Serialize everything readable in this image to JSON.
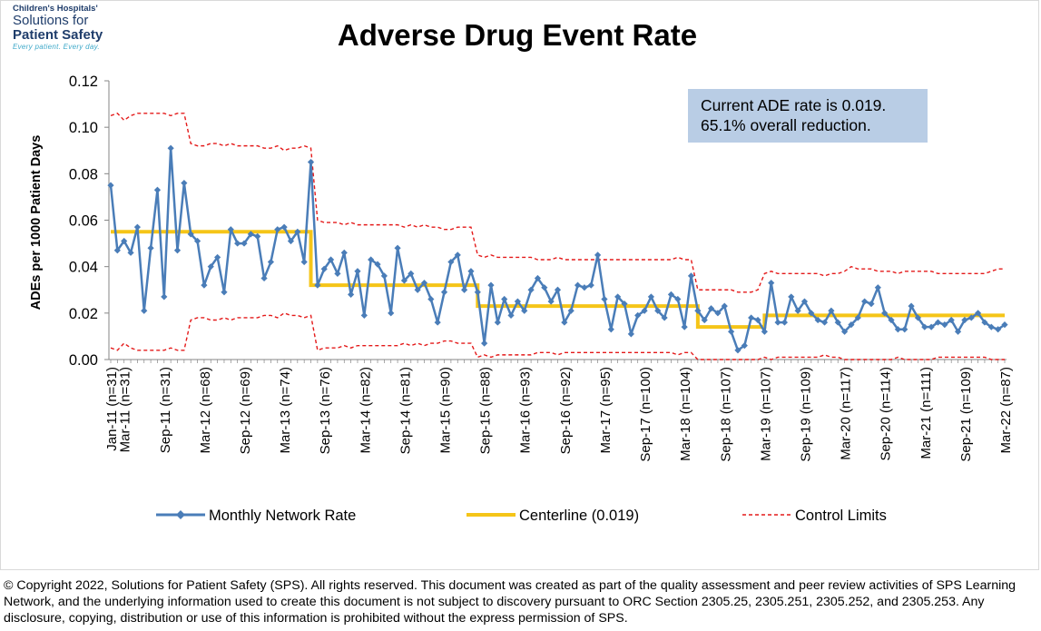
{
  "logo": {
    "line1": "Children's Hospitals'",
    "line2": "Solutions for",
    "line3": "Patient Safety",
    "line4": "Every patient. Every day."
  },
  "infobox": {
    "line1": "Current ADE rate is 0.019.",
    "line2": "65.1% overall reduction."
  },
  "footer": {
    "text": "© Copyright 2022, Solutions for Patient Safety (SPS).  All rights reserved.  This document was created as part of the quality assessment and peer review activities of SPS Learning Network, and the underlying information used to create this document is not subject to discovery pursuant to ORC Section 2305.25, 2305.251, 2305.252, and 2305.253. Any disclosure, copying, distribution or use of this information is prohibited without the express permission of SPS."
  },
  "colors": {
    "series": "#4a7db8",
    "centerline": "#f5c518",
    "limits": "#e41a1a",
    "axis": "#868686",
    "infobox": "#b9cde5"
  },
  "chart_data": {
    "type": "line",
    "title": "Adverse Drug Event Rate",
    "ylabel": "ADEs per 1000 Patient Days",
    "xlabel": "",
    "ylim": [
      0,
      0.12
    ],
    "yticks": [
      "0.00",
      "0.02",
      "0.04",
      "0.06",
      "0.08",
      "0.10",
      "0.12"
    ],
    "grid": false,
    "legend_position": "bottom",
    "x_tick_labels": [
      {
        "i": 0,
        "label": "Jan-11 (n=31)"
      },
      {
        "i": 2,
        "label": "Mar-11 (n=31)"
      },
      {
        "i": 8,
        "label": "Sep-11 (n=31)"
      },
      {
        "i": 14,
        "label": "Mar-12 (n=68)"
      },
      {
        "i": 20,
        "label": "Sep-12 (n=69)"
      },
      {
        "i": 26,
        "label": "Mar-13 (n=74)"
      },
      {
        "i": 32,
        "label": "Sep-13 (n=76)"
      },
      {
        "i": 38,
        "label": "Mar-14 (n=82)"
      },
      {
        "i": 44,
        "label": "Sep-14 (n=81)"
      },
      {
        "i": 50,
        "label": "Mar-15 (n=90)"
      },
      {
        "i": 56,
        "label": "Sep-15 (n=88)"
      },
      {
        "i": 62,
        "label": "Mar-16 (n=93)"
      },
      {
        "i": 68,
        "label": "Sep-16 (n=92)"
      },
      {
        "i": 74,
        "label": "Mar-17 (n=95)"
      },
      {
        "i": 80,
        "label": "Sep-17 (n=100)"
      },
      {
        "i": 86,
        "label": "Mar-18 (n=104)"
      },
      {
        "i": 92,
        "label": "Sep-18 (n=107)"
      },
      {
        "i": 98,
        "label": "Mar-19 (n=107)"
      },
      {
        "i": 104,
        "label": "Sep-19 (n=109)"
      },
      {
        "i": 110,
        "label": "Mar-20 (n=117)"
      },
      {
        "i": 116,
        "label": "Sep-20 (n=114)"
      },
      {
        "i": 122,
        "label": "Mar-21 (n=111)"
      },
      {
        "i": 128,
        "label": "Sep-21 (n=109)"
      },
      {
        "i": 134,
        "label": "Mar-22 (n=87)"
      }
    ],
    "series": [
      {
        "name": "Monthly Network Rate",
        "style": "line-diamond",
        "values": [
          0.075,
          0.047,
          0.051,
          0.046,
          0.057,
          0.021,
          0.048,
          0.073,
          0.027,
          0.091,
          0.047,
          0.076,
          0.054,
          0.051,
          0.032,
          0.04,
          0.044,
          0.029,
          0.056,
          0.05,
          0.05,
          0.054,
          0.053,
          0.035,
          0.042,
          0.056,
          0.057,
          0.051,
          0.055,
          0.042,
          0.085,
          0.032,
          0.039,
          0.043,
          0.037,
          0.046,
          0.028,
          0.038,
          0.019,
          0.043,
          0.041,
          0.036,
          0.02,
          0.048,
          0.034,
          0.037,
          0.03,
          0.033,
          0.026,
          0.016,
          0.029,
          0.042,
          0.045,
          0.03,
          0.038,
          0.029,
          0.007,
          0.032,
          0.016,
          0.026,
          0.019,
          0.025,
          0.021,
          0.03,
          0.035,
          0.031,
          0.025,
          0.03,
          0.016,
          0.021,
          0.032,
          0.031,
          0.032,
          0.045,
          0.026,
          0.013,
          0.027,
          0.024,
          0.011,
          0.019,
          0.021,
          0.027,
          0.021,
          0.018,
          0.028,
          0.026,
          0.014,
          0.036,
          0.021,
          0.017,
          0.022,
          0.02,
          0.023,
          0.012,
          0.004,
          0.006,
          0.018,
          0.017,
          0.012,
          0.033,
          0.016,
          0.016,
          0.027,
          0.021,
          0.025,
          0.02,
          0.017,
          0.016,
          0.021,
          0.016,
          0.012,
          0.015,
          0.018,
          0.025,
          0.024,
          0.031,
          0.02,
          0.017,
          0.013,
          0.013,
          0.023,
          0.018,
          0.014,
          0.014,
          0.016,
          0.015,
          0.017,
          0.012,
          0.017,
          0.018,
          0.02,
          0.016,
          0.014,
          0.013,
          0.015
        ]
      },
      {
        "name": "Centerline (0.019)",
        "style": "step",
        "segments": [
          {
            "from": 0,
            "to": 30,
            "value": 0.055
          },
          {
            "from": 30,
            "to": 55,
            "value": 0.032
          },
          {
            "from": 55,
            "to": 88,
            "value": 0.023
          },
          {
            "from": 88,
            "to": 98,
            "value": 0.014
          },
          {
            "from": 98,
            "to": 134,
            "value": 0.019
          }
        ]
      },
      {
        "name": "Control Limits",
        "style": "dashed",
        "upper": [
          0.105,
          0.106,
          0.103,
          0.105,
          0.106,
          0.106,
          0.106,
          0.106,
          0.106,
          0.105,
          0.106,
          0.106,
          0.093,
          0.092,
          0.092,
          0.093,
          0.093,
          0.092,
          0.093,
          0.092,
          0.092,
          0.092,
          0.092,
          0.091,
          0.091,
          0.092,
          0.09,
          0.091,
          0.091,
          0.092,
          0.091,
          0.06,
          0.059,
          0.059,
          0.059,
          0.058,
          0.059,
          0.058,
          0.058,
          0.058,
          0.058,
          0.058,
          0.058,
          0.058,
          0.057,
          0.058,
          0.057,
          0.058,
          0.057,
          0.057,
          0.056,
          0.056,
          0.057,
          0.057,
          0.057,
          0.045,
          0.044,
          0.045,
          0.044,
          0.044,
          0.044,
          0.044,
          0.044,
          0.044,
          0.043,
          0.043,
          0.043,
          0.044,
          0.043,
          0.043,
          0.043,
          0.043,
          0.043,
          0.043,
          0.043,
          0.043,
          0.043,
          0.043,
          0.043,
          0.043,
          0.043,
          0.043,
          0.043,
          0.043,
          0.043,
          0.044,
          0.043,
          0.043,
          0.03,
          0.03,
          0.03,
          0.03,
          0.03,
          0.03,
          0.029,
          0.029,
          0.029,
          0.03,
          0.037,
          0.038,
          0.037,
          0.037,
          0.037,
          0.037,
          0.037,
          0.037,
          0.037,
          0.036,
          0.037,
          0.037,
          0.038,
          0.04,
          0.039,
          0.039,
          0.039,
          0.038,
          0.038,
          0.038,
          0.037,
          0.038,
          0.038,
          0.038,
          0.038,
          0.038,
          0.037,
          0.037,
          0.037,
          0.037,
          0.037,
          0.037,
          0.037,
          0.037,
          0.038,
          0.039,
          0.039
        ],
        "lower": [
          0.005,
          0.004,
          0.007,
          0.005,
          0.004,
          0.004,
          0.004,
          0.004,
          0.004,
          0.005,
          0.004,
          0.004,
          0.017,
          0.018,
          0.018,
          0.017,
          0.017,
          0.018,
          0.017,
          0.018,
          0.018,
          0.018,
          0.018,
          0.019,
          0.019,
          0.018,
          0.02,
          0.019,
          0.019,
          0.018,
          0.019,
          0.004,
          0.005,
          0.005,
          0.005,
          0.006,
          0.005,
          0.006,
          0.006,
          0.006,
          0.006,
          0.006,
          0.006,
          0.006,
          0.007,
          0.006,
          0.007,
          0.006,
          0.007,
          0.007,
          0.008,
          0.008,
          0.007,
          0.007,
          0.007,
          0.001,
          0.002,
          0.001,
          0.002,
          0.002,
          0.002,
          0.002,
          0.002,
          0.002,
          0.003,
          0.003,
          0.003,
          0.002,
          0.003,
          0.003,
          0.003,
          0.003,
          0.003,
          0.003,
          0.003,
          0.003,
          0.003,
          0.003,
          0.003,
          0.003,
          0.003,
          0.003,
          0.003,
          0.003,
          0.003,
          0.002,
          0.003,
          0.003,
          0.0,
          0.0,
          0.0,
          0.0,
          0.0,
          0.0,
          0.0,
          0.0,
          0.0,
          0.0,
          0.001,
          0.0,
          0.001,
          0.001,
          0.001,
          0.001,
          0.001,
          0.001,
          0.001,
          0.002,
          0.001,
          0.001,
          0.0,
          0.0,
          0.0,
          0.0,
          0.0,
          0.0,
          0.0,
          0.0,
          0.001,
          0.0,
          0.0,
          0.0,
          0.0,
          0.0,
          0.001,
          0.001,
          0.001,
          0.001,
          0.001,
          0.001,
          0.001,
          0.001,
          0.0,
          0.0,
          0.0
        ]
      }
    ]
  }
}
